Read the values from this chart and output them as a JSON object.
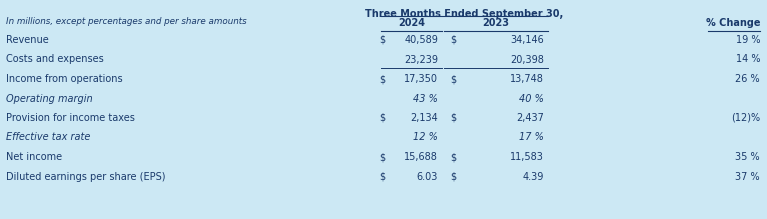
{
  "title": "Three Months Ended September 30,",
  "subtitle": "In millions, except percentages and per share amounts",
  "rows": [
    {
      "label": "Revenue",
      "dollar1": "$",
      "val1": "40,589",
      "dollar2": "$",
      "val2": "34,146",
      "change": "19 %",
      "italic": false,
      "border_below": false
    },
    {
      "label": "Costs and expenses",
      "dollar1": "",
      "val1": "23,239",
      "dollar2": "",
      "val2": "20,398",
      "change": "14 %",
      "italic": false,
      "border_below": true
    },
    {
      "label": "Income from operations",
      "dollar1": "$",
      "val1": "17,350",
      "dollar2": "$",
      "val2": "13,748",
      "change": "26 %",
      "italic": false,
      "border_below": false
    },
    {
      "label": "Operating margin",
      "dollar1": "",
      "val1": "43 %",
      "dollar2": "",
      "val2": "40 %",
      "change": "",
      "italic": true,
      "border_below": false
    },
    {
      "label": "Provision for income taxes",
      "dollar1": "$",
      "val1": "2,134",
      "dollar2": "$",
      "val2": "2,437",
      "change": "(12)%",
      "italic": false,
      "border_below": false
    },
    {
      "label": "Effective tax rate",
      "dollar1": "",
      "val1": "12 %",
      "dollar2": "",
      "val2": "17 %",
      "change": "",
      "italic": true,
      "border_below": false
    },
    {
      "label": "Net income",
      "dollar1": "$",
      "val1": "15,688",
      "dollar2": "$",
      "val2": "11,583",
      "change": "35 %",
      "italic": false,
      "border_below": false
    },
    {
      "label": "Diluted earnings per share (EPS)",
      "dollar1": "$",
      "val1": "6.03",
      "dollar2": "$",
      "val2": "4.39",
      "change": "37 %",
      "italic": false,
      "border_below": false
    }
  ],
  "bg_color": "#cce8f4",
  "text_color": "#1a3a6b",
  "figsize": [
    7.67,
    2.19
  ],
  "dpi": 100
}
